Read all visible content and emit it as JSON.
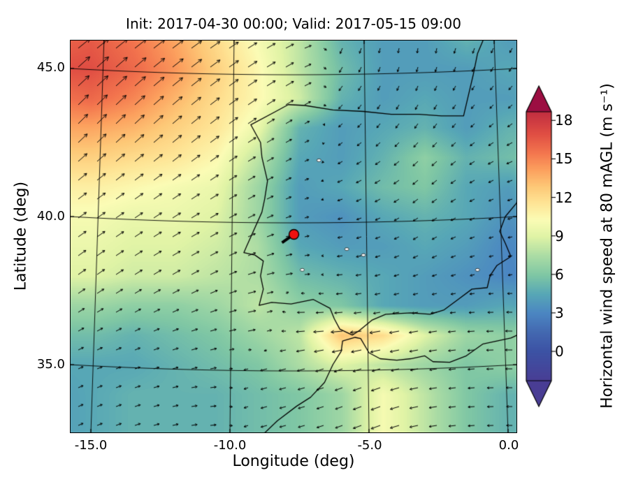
{
  "figure": {
    "title": "Init: 2017-04-30 00:00; Valid: 2017-05-15 09:00",
    "xlabel": "Longitude (deg)",
    "ylabel": "Latitude (deg)",
    "xtick_labels": [
      "-15.0",
      "-10.0",
      "-5.0",
      "0.0"
    ],
    "ytick_labels": [
      "45.0",
      "40.0",
      "35.0"
    ],
    "colorbar_label": "Horizontal wind speed at 80 mAGL (m s⁻¹)",
    "colorbar_tick_labels": [
      "18",
      "15",
      "12",
      "9",
      "6",
      "3",
      "0"
    ]
  },
  "chart_data": {
    "type": "heatmap",
    "title": "Init: 2017-04-30 00:00; Valid: 2017-05-15 09:00",
    "xlabel": "Longitude (deg)",
    "ylabel": "Latitude (deg)",
    "xlim": [
      -15.75,
      0.33
    ],
    "ylim": [
      32.7,
      45.97
    ],
    "xticks": [
      -15.0,
      -10.0,
      -5.0,
      0.0
    ],
    "yticks": [
      45.0,
      40.0,
      35.0
    ],
    "grid": true,
    "legend_position": "none",
    "colorbar": {
      "label": "Horizontal wind speed at 80 mAGL (m s⁻¹)",
      "ticks": [
        0,
        3,
        6,
        9,
        12,
        15,
        18
      ],
      "range": [
        0,
        18.65
      ],
      "extend": "both",
      "colormap": "Spectral_r",
      "under_color": "#493d94",
      "over_color": "#9c0e42"
    },
    "colormap_stops": [
      [
        0.0,
        "#3c52a4"
      ],
      [
        0.08,
        "#4368b0"
      ],
      [
        0.16,
        "#4b86c2"
      ],
      [
        0.24,
        "#57a7b6"
      ],
      [
        0.32,
        "#7fc7a4"
      ],
      [
        0.4,
        "#abdca4"
      ],
      [
        0.48,
        "#dff3a5"
      ],
      [
        0.55,
        "#fbfcb5"
      ],
      [
        0.62,
        "#fee596"
      ],
      [
        0.69,
        "#fdc877"
      ],
      [
        0.76,
        "#fca05e"
      ],
      [
        0.83,
        "#f3764e"
      ],
      [
        0.91,
        "#e04e43"
      ],
      [
        1.0,
        "#c22e40"
      ]
    ],
    "marker": {
      "lon": -7.7,
      "lat": 39.4,
      "color": "#ee1111",
      "edge_color": "#000000",
      "note": "site marker with short wind stick pointing southwest"
    },
    "wind_field": {
      "units": "m s-1",
      "lon_nodes": [
        -16.5,
        -15,
        -13.5,
        -12,
        -10.5,
        -9,
        -7.5,
        -6,
        -4.5,
        -3,
        -1.5,
        0,
        1
      ],
      "lat_nodes": [
        34,
        35,
        36,
        37,
        38,
        39,
        40,
        41,
        42,
        43,
        44,
        45,
        46
      ],
      "speed": [
        [
          4,
          4.5,
          5,
          5,
          5,
          5.5,
          6,
          7,
          10,
          8,
          6,
          5,
          5
        ],
        [
          4.5,
          4.5,
          4.5,
          5,
          5.5,
          6,
          7.5,
          9,
          8,
          7,
          6,
          6.5,
          6.5
        ],
        [
          5.5,
          5.5,
          5,
          5.5,
          6,
          7,
          8,
          13,
          12,
          9,
          7,
          6.5,
          7
        ],
        [
          7,
          7,
          6.5,
          6.5,
          7,
          8,
          6.5,
          6,
          4.5,
          4,
          4,
          4.5,
          4
        ],
        [
          9,
          9,
          8.5,
          8.5,
          8,
          7.5,
          5.5,
          5,
          4.5,
          4,
          3.5,
          3,
          3
        ],
        [
          9.5,
          9.5,
          9,
          9,
          8.5,
          7.5,
          4.5,
          4,
          4,
          4.5,
          4,
          3,
          3.5
        ],
        [
          10,
          10,
          9.5,
          9.5,
          9,
          7,
          4,
          3.5,
          4.5,
          5,
          4.5,
          3.5,
          4
        ],
        [
          11,
          11,
          10.5,
          10,
          9.5,
          7,
          4,
          4.5,
          5.5,
          6,
          4.5,
          4,
          5
        ],
        [
          12.5,
          12.5,
          12,
          11.5,
          10.5,
          8,
          4.5,
          4,
          5,
          6.5,
          5,
          5.5,
          6
        ],
        [
          14,
          14,
          13.5,
          12.5,
          11.5,
          9.5,
          5,
          4,
          4.5,
          5,
          4,
          5,
          5
        ],
        [
          15.5,
          16,
          15,
          13.5,
          12,
          10.5,
          8.5,
          5,
          4,
          4.5,
          4,
          4,
          4.5
        ],
        [
          17,
          17,
          16,
          14.5,
          12.5,
          10.5,
          8,
          5.5,
          4,
          4,
          4,
          4.5,
          4
        ],
        [
          16,
          16.5,
          15.5,
          14,
          12,
          10,
          8,
          5,
          4,
          4,
          5,
          4,
          4
        ]
      ],
      "dir_deg_math": [
        [
          25,
          22,
          18,
          12,
          5,
          195,
          195,
          200,
          200,
          190,
          185,
          180,
          180
        ],
        [
          25,
          22,
          18,
          15,
          10,
          195,
          195,
          200,
          195,
          190,
          185,
          180,
          180
        ],
        [
          30,
          28,
          25,
          20,
          15,
          10,
          185,
          185,
          190,
          190,
          185,
          180,
          175
        ],
        [
          35,
          32,
          30,
          25,
          20,
          10,
          180,
          185,
          190,
          190,
          185,
          180,
          175
        ],
        [
          35,
          35,
          32,
          30,
          25,
          15,
          5,
          185,
          195,
          200,
          195,
          190,
          185
        ],
        [
          35,
          35,
          33,
          30,
          28,
          20,
          10,
          190,
          200,
          210,
          200,
          190,
          185
        ],
        [
          35,
          35,
          34,
          32,
          30,
          25,
          15,
          195,
          205,
          215,
          205,
          195,
          190
        ],
        [
          38,
          38,
          36,
          34,
          32,
          28,
          20,
          200,
          210,
          220,
          210,
          200,
          195
        ],
        [
          42,
          42,
          40,
          38,
          35,
          30,
          25,
          210,
          215,
          225,
          215,
          205,
          200
        ],
        [
          45,
          45,
          43,
          40,
          37,
          32,
          28,
          220,
          230,
          235,
          225,
          215,
          210
        ],
        [
          44,
          44,
          42,
          40,
          37,
          33,
          30,
          230,
          240,
          245,
          235,
          225,
          220
        ],
        [
          42,
          42,
          40,
          38,
          36,
          32,
          28,
          240,
          250,
          255,
          245,
          235,
          230
        ],
        [
          38,
          38,
          37,
          36,
          34,
          30,
          25,
          250,
          260,
          265,
          255,
          245,
          240
        ]
      ]
    },
    "coastlines": [
      [
        [
          -0.9,
          45.95
        ],
        [
          -1.1,
          45.5
        ],
        [
          -1.25,
          44.8
        ],
        [
          -1.45,
          44.0
        ],
        [
          -1.6,
          43.4
        ],
        [
          -2.4,
          43.4
        ],
        [
          -3.2,
          43.45
        ],
        [
          -4.2,
          43.45
        ],
        [
          -5.2,
          43.55
        ],
        [
          -6.3,
          43.6
        ],
        [
          -7.3,
          43.75
        ],
        [
          -7.9,
          43.78
        ],
        [
          -8.35,
          43.55
        ],
        [
          -9.25,
          43.1
        ],
        [
          -8.9,
          42.5
        ],
        [
          -8.85,
          42.0
        ],
        [
          -8.65,
          41.2
        ],
        [
          -8.75,
          40.6
        ],
        [
          -8.85,
          40.15
        ],
        [
          -9.4,
          39.0
        ],
        [
          -9.5,
          38.78
        ],
        [
          -9.1,
          38.7
        ],
        [
          -8.8,
          38.5
        ],
        [
          -8.9,
          38.0
        ],
        [
          -8.8,
          37.55
        ],
        [
          -8.95,
          37.0
        ],
        [
          -8.5,
          37.1
        ],
        [
          -7.8,
          37.05
        ],
        [
          -7.0,
          37.2
        ],
        [
          -6.4,
          36.9
        ],
        [
          -6.25,
          36.55
        ],
        [
          -6.05,
          36.2
        ],
        [
          -5.6,
          36.0
        ],
        [
          -5.35,
          36.15
        ],
        [
          -4.9,
          36.5
        ],
        [
          -4.4,
          36.7
        ],
        [
          -3.5,
          36.75
        ],
        [
          -2.8,
          36.7
        ],
        [
          -2.3,
          36.85
        ],
        [
          -1.8,
          37.2
        ],
        [
          -1.3,
          37.55
        ],
        [
          -0.75,
          37.6
        ],
        [
          -0.65,
          38.0
        ],
        [
          -0.4,
          38.35
        ],
        [
          0.1,
          38.65
        ],
        [
          -0.1,
          39.1
        ],
        [
          -0.3,
          39.5
        ],
        [
          -0.1,
          40.0
        ],
        [
          0.3,
          40.45
        ],
        [
          0.45,
          40.7
        ]
      ],
      [
        [
          -8.8,
          32.65
        ],
        [
          -8.3,
          33.1
        ],
        [
          -7.6,
          33.6
        ],
        [
          -7.1,
          33.9
        ],
        [
          -6.6,
          34.4
        ],
        [
          -6.3,
          35.0
        ],
        [
          -6.0,
          35.45
        ],
        [
          -5.95,
          35.8
        ],
        [
          -5.5,
          35.92
        ],
        [
          -5.3,
          35.88
        ],
        [
          -5.0,
          35.4
        ],
        [
          -4.6,
          35.2
        ],
        [
          -4.0,
          35.15
        ],
        [
          -3.5,
          35.2
        ],
        [
          -3.0,
          35.3
        ],
        [
          -2.7,
          35.1
        ],
        [
          -2.1,
          35.08
        ],
        [
          -1.5,
          35.3
        ],
        [
          -0.9,
          35.7
        ],
        [
          -0.4,
          35.8
        ],
        [
          0.1,
          35.9
        ],
        [
          0.45,
          36.05
        ]
      ]
    ],
    "water_bodies": [
      [
        -7.4,
        38.2
      ],
      [
        -5.8,
        38.9
      ],
      [
        -5.2,
        38.7
      ],
      [
        -6.8,
        41.9
      ],
      [
        -1.1,
        38.2
      ]
    ]
  }
}
